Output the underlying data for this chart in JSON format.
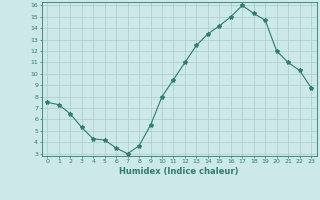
{
  "x": [
    0,
    1,
    2,
    3,
    4,
    5,
    6,
    7,
    8,
    9,
    10,
    11,
    12,
    13,
    14,
    15,
    16,
    17,
    18,
    19,
    20,
    21,
    22,
    23
  ],
  "y": [
    7.5,
    7.3,
    6.5,
    5.3,
    4.3,
    4.2,
    3.5,
    3.0,
    3.7,
    5.5,
    8.0,
    9.5,
    11.0,
    12.5,
    13.5,
    14.2,
    15.0,
    16.0,
    15.3,
    14.7,
    12.0,
    11.0,
    10.3,
    8.8
  ],
  "xlim": [
    -0.5,
    23.5
  ],
  "ylim": [
    2.8,
    16.3
  ],
  "yticks": [
    3,
    4,
    5,
    6,
    7,
    8,
    9,
    10,
    11,
    12,
    13,
    14,
    15,
    16
  ],
  "xticks": [
    0,
    1,
    2,
    3,
    4,
    5,
    6,
    7,
    8,
    9,
    10,
    11,
    12,
    13,
    14,
    15,
    16,
    17,
    18,
    19,
    20,
    21,
    22,
    23
  ],
  "xlabel": "Humidex (Indice chaleur)",
  "line_color": "#2e7d6e",
  "marker": "*",
  "marker_size": 3,
  "bg_color": "#cce8e8",
  "grid_color": "#aacccc"
}
